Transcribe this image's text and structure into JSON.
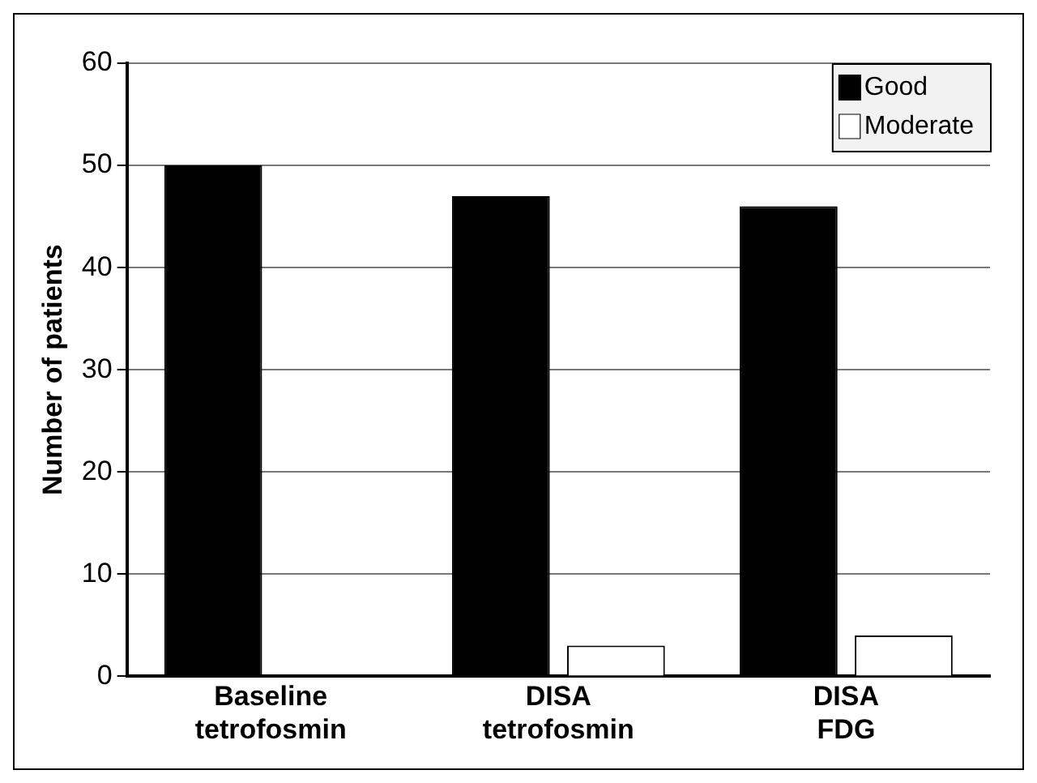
{
  "chart_data": {
    "type": "bar",
    "ylabel": "Number of patients",
    "categories": [
      "Baseline tetrofosmin",
      "DISA tetrofosmin",
      "DISA FDG"
    ],
    "series": [
      {
        "name": "Good",
        "color": "#000000",
        "values": [
          50,
          47,
          46
        ]
      },
      {
        "name": "Moderate",
        "color": "#ffffff",
        "values": [
          0,
          3,
          4
        ]
      }
    ],
    "ylim": [
      0,
      60
    ],
    "yticks": [
      0,
      10,
      20,
      30,
      40,
      50,
      60
    ],
    "grid": "y",
    "legend": "top right"
  }
}
